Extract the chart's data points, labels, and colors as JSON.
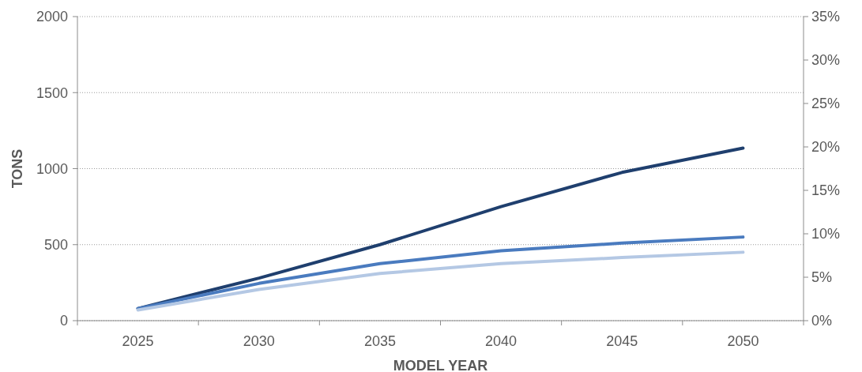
{
  "chart_data": {
    "type": "line",
    "xlabel": "MODEL YEAR",
    "ylabel": "TONS",
    "categories": [
      "2025",
      "2030",
      "2035",
      "2040",
      "2045",
      "2050"
    ],
    "series": [
      {
        "color": "#1f3f6e",
        "values": [
          80,
          280,
          500,
          750,
          975,
          1135
        ]
      },
      {
        "color": "#4a7bbf",
        "values": [
          80,
          245,
          375,
          460,
          510,
          550
        ]
      },
      {
        "color": "#b4c8e4",
        "values": [
          70,
          205,
          310,
          375,
          415,
          450
        ]
      }
    ],
    "ylim": [
      0,
      2000
    ],
    "yticks": [
      0,
      500,
      1000,
      1500,
      2000
    ],
    "y2lim": [
      0,
      35
    ],
    "y2ticks": [
      {
        "value": 0,
        "label": "0%"
      },
      {
        "value": 5,
        "label": "5%"
      },
      {
        "value": 10,
        "label": "10%"
      },
      {
        "value": 15,
        "label": "15%"
      },
      {
        "value": 20,
        "label": "20%"
      },
      {
        "value": 25,
        "label": "25%"
      },
      {
        "value": 30,
        "label": "30%"
      },
      {
        "value": 35,
        "label": "35%"
      }
    ],
    "grid": "y",
    "marker": "none",
    "line_style": "solid"
  }
}
